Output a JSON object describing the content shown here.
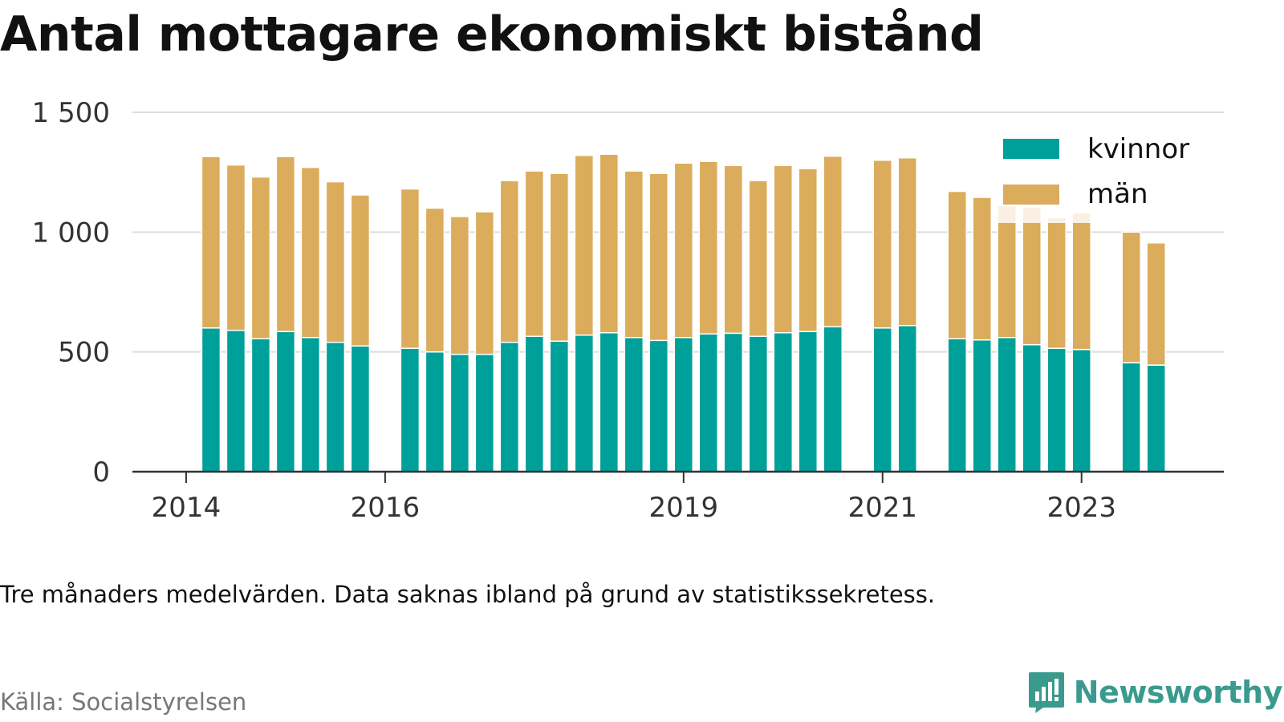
{
  "title": "Antal mottagare ekonomiskt bistånd",
  "note": "Tre månaders medelvärden. Data saknas ibland på grund av statistikssekretess.",
  "source": "Källa: Socialstyrelsen",
  "brand": {
    "name": "Newsworthy",
    "icon": "newsworthy-chart-bubble-icon",
    "color": "#3a9a8d"
  },
  "chart_data": {
    "type": "bar",
    "stacked": true,
    "xlabel": "",
    "ylabel": "",
    "ylim": [
      0,
      1500
    ],
    "yticks": [
      0,
      500,
      1000,
      1500
    ],
    "ytick_labels": [
      "0",
      "500",
      "1 000",
      "1 500"
    ],
    "xtick_labels": [
      {
        "label": "2014",
        "x": 2014.0
      },
      {
        "label": "2016",
        "x": 2016.0
      },
      {
        "label": "2019",
        "x": 2019.0
      },
      {
        "label": "2021",
        "x": 2021.0
      },
      {
        "label": "2023",
        "x": 2023.0
      }
    ],
    "xlim": [
      2013.46,
      2024.43
    ],
    "grid": true,
    "legend_position": "top-right",
    "colors": {
      "kvinnor": "#00a09a",
      "män": "#dbac5b",
      "grid": "#dddddd",
      "axis": "#333333"
    },
    "x": [
      2014.25,
      2014.5,
      2014.75,
      2015.0,
      2015.25,
      2015.5,
      2015.75,
      2016.25,
      2016.5,
      2016.75,
      2017.0,
      2017.25,
      2017.5,
      2017.75,
      2018.0,
      2018.25,
      2018.5,
      2018.75,
      2019.0,
      2019.25,
      2019.5,
      2019.75,
      2020.0,
      2020.25,
      2020.5,
      2021.0,
      2021.25,
      2021.75,
      2022.0,
      2022.25,
      2022.5,
      2022.75,
      2023.0,
      2023.5,
      2023.75
    ],
    "series": [
      {
        "name": "kvinnor",
        "values": [
          600,
          590,
          555,
          585,
          560,
          540,
          525,
          515,
          500,
          490,
          490,
          540,
          565,
          545,
          570,
          580,
          560,
          548,
          560,
          575,
          578,
          565,
          580,
          585,
          605,
          600,
          610,
          555,
          550,
          560,
          530,
          515,
          510,
          455,
          445
        ]
      },
      {
        "name": "män",
        "values": [
          715,
          690,
          675,
          730,
          710,
          670,
          630,
          665,
          600,
          575,
          595,
          675,
          690,
          700,
          750,
          745,
          695,
          697,
          728,
          720,
          700,
          650,
          698,
          680,
          712,
          700,
          700,
          615,
          595,
          550,
          575,
          545,
          570,
          545,
          510
        ]
      }
    ]
  }
}
